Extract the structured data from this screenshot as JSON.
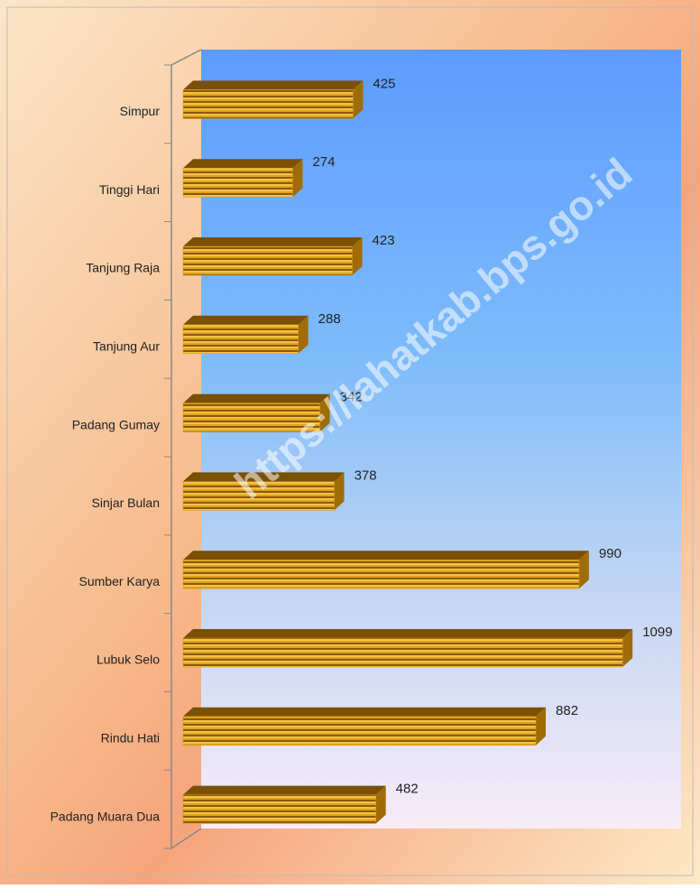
{
  "chart_data": {
    "type": "bar",
    "orientation": "horizontal",
    "categories": [
      "Simpur",
      "Tinggi Hari",
      "Tanjung Raja",
      "Tanjung Aur",
      "Padang Gumay",
      "Sinjar Bulan",
      "Sumber Karya",
      "Lubuk Selo",
      "Rindu Hati",
      "Padang Muara Dua"
    ],
    "values": [
      425,
      274,
      423,
      288,
      342,
      378,
      990,
      1099,
      882,
      482
    ],
    "color": "#d89a12",
    "xlim": [
      0,
      1200
    ],
    "watermark": "https://lahatkab.bps.go.id"
  }
}
